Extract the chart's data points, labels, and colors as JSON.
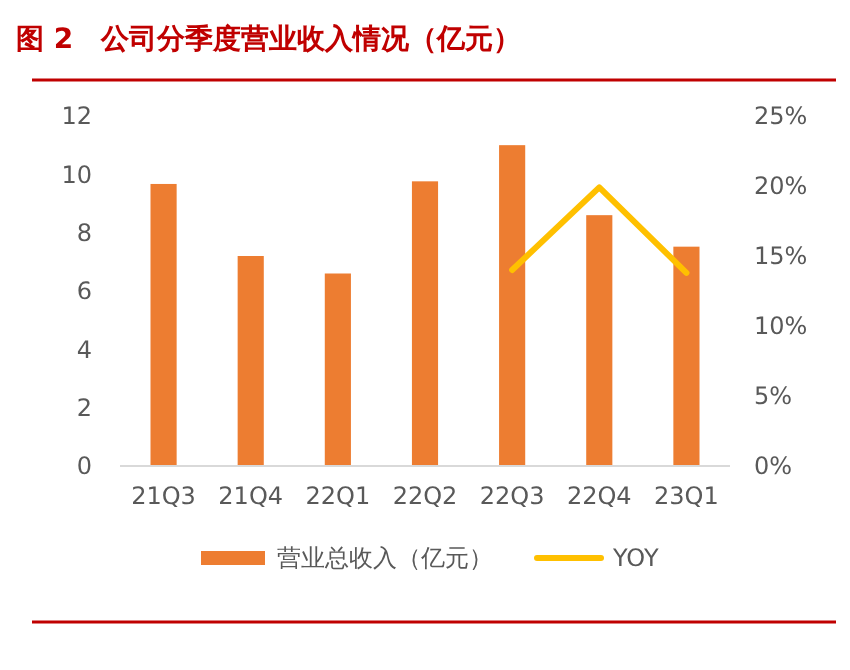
{
  "chart_data": {
    "type": "bar",
    "title": "图 2　公司分季度营业收入情况（亿元）",
    "categories": [
      "21Q3",
      "21Q4",
      "22Q1",
      "22Q2",
      "22Q3",
      "22Q4",
      "23Q1"
    ],
    "series": [
      {
        "name": "营业总收入（亿元）",
        "color": "#ed7d31",
        "values": [
          9.67,
          7.2,
          6.6,
          9.76,
          11.0,
          8.6,
          7.52
        ]
      },
      {
        "name": "YOY",
        "type": "line",
        "axis": "y2",
        "color": "#ffc000",
        "values": [
          null,
          null,
          null,
          null,
          14.0,
          19.9,
          13.8
        ]
      }
    ],
    "ylim": [
      0,
      12
    ],
    "yticks": [
      0,
      2,
      4,
      6,
      8,
      10,
      12
    ],
    "y2lim": [
      0,
      25
    ],
    "y2ticks": [
      {
        "value": 0,
        "label": "0%"
      },
      {
        "value": 5,
        "label": "5%"
      },
      {
        "value": 10,
        "label": "10%"
      },
      {
        "value": 15,
        "label": "15%"
      },
      {
        "value": 20,
        "label": "20%"
      },
      {
        "value": 25,
        "label": "25%"
      }
    ],
    "legend": "bottom",
    "grid": false
  }
}
